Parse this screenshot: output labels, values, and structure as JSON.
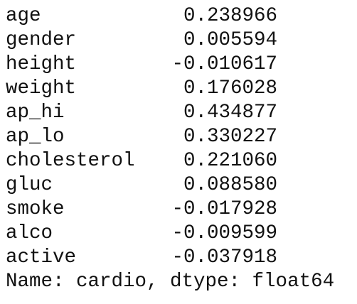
{
  "series": {
    "rows": [
      {
        "index": "age",
        "value": "0.238966"
      },
      {
        "index": "gender",
        "value": "0.005594"
      },
      {
        "index": "height",
        "value": "-0.010617"
      },
      {
        "index": "weight",
        "value": "0.176028"
      },
      {
        "index": "ap_hi",
        "value": "0.434877"
      },
      {
        "index": "ap_lo",
        "value": "0.330227"
      },
      {
        "index": "cholesterol",
        "value": "0.221060"
      },
      {
        "index": "gluc",
        "value": "0.088580"
      },
      {
        "index": "smoke",
        "value": "-0.017928"
      },
      {
        "index": "alco",
        "value": "-0.009599"
      },
      {
        "index": "active",
        "value": "-0.037918"
      }
    ],
    "footer": "Name: cardio, dtype: float64"
  }
}
